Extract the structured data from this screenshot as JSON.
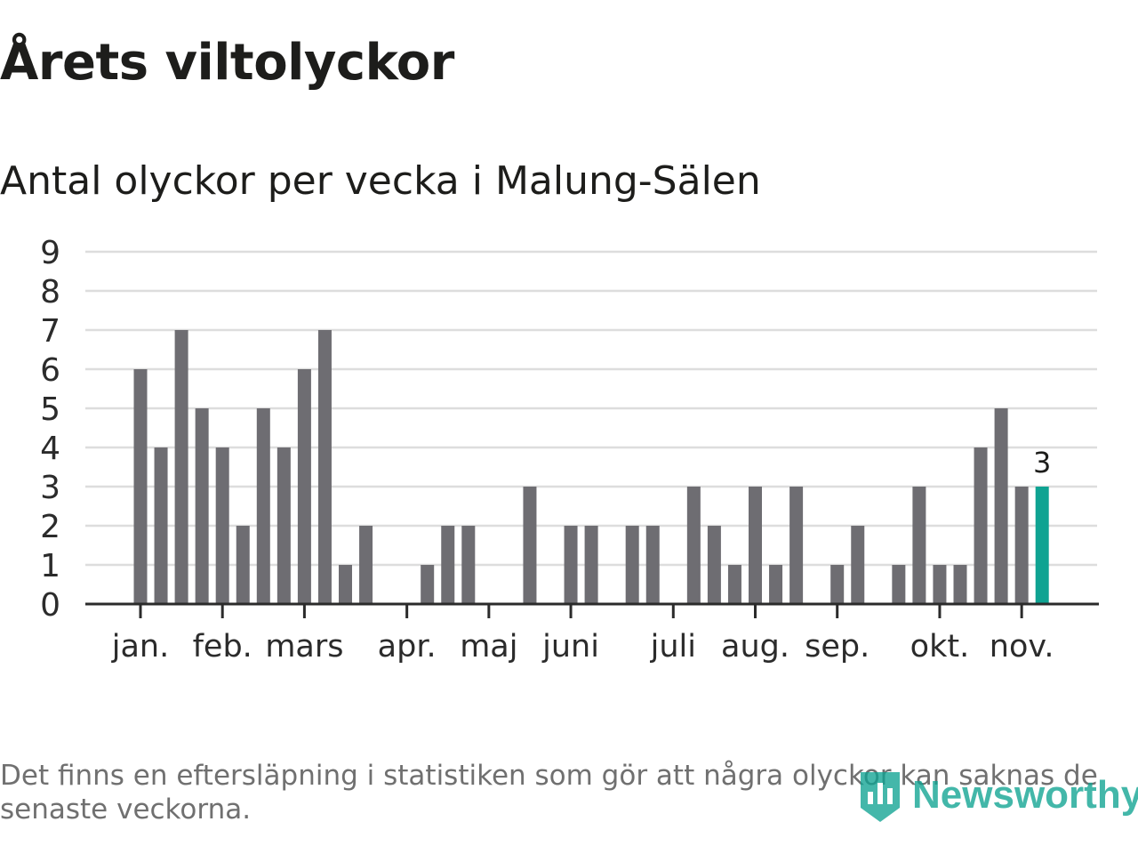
{
  "header": {
    "title": "Årets viltolyckor",
    "subtitle": "Antal olyckor per vecka i Malung-Sälen"
  },
  "footer": {
    "note": "Det finns en eftersläpning i statistiken som gör att några olyckor kan saknas de senaste veckorna.",
    "logo": "Newsworthy"
  },
  "colors": {
    "bar": "#6e6d72",
    "highlight": "#0fa392",
    "grid": "#dddddd",
    "axis": "#2b2b2b",
    "text": "#2b2b2b"
  },
  "chart_data": {
    "type": "bar",
    "title": "Antal olyckor per vecka i Malung-Sälen",
    "xlabel": "",
    "ylabel": "",
    "ylim": [
      0,
      9
    ],
    "yticks": [
      0,
      1,
      2,
      3,
      4,
      5,
      6,
      7,
      8,
      9
    ],
    "grid": true,
    "x": [
      1,
      2,
      3,
      4,
      5,
      6,
      7,
      8,
      9,
      10,
      11,
      12,
      13,
      14,
      15,
      16,
      17,
      18,
      19,
      20,
      21,
      22,
      23,
      24,
      25,
      26,
      27,
      28,
      29,
      30,
      31,
      32,
      33,
      34,
      35,
      36,
      37,
      38,
      39,
      40,
      41,
      42,
      43,
      44,
      45,
      46
    ],
    "values": [
      6,
      4,
      7,
      5,
      4,
      2,
      5,
      4,
      6,
      7,
      1,
      2,
      0,
      0,
      1,
      2,
      2,
      0,
      0,
      3,
      0,
      2,
      2,
      0,
      2,
      2,
      0,
      3,
      2,
      1,
      3,
      1,
      3,
      0,
      1,
      2,
      0,
      1,
      3,
      1,
      1,
      4,
      5,
      3,
      3,
      0
    ],
    "month_ticks": [
      {
        "label": "jan.",
        "week": 1
      },
      {
        "label": "feb.",
        "week": 5
      },
      {
        "label": "mars",
        "week": 9
      },
      {
        "label": "apr.",
        "week": 14
      },
      {
        "label": "maj",
        "week": 18
      },
      {
        "label": "juni",
        "week": 22
      },
      {
        "label": "juli",
        "week": 27
      },
      {
        "label": "aug.",
        "week": 31
      },
      {
        "label": "sep.",
        "week": 35
      },
      {
        "label": "okt.",
        "week": 40
      },
      {
        "label": "nov.",
        "week": 44
      }
    ],
    "highlight": {
      "week": 45,
      "value": 3,
      "label": "3"
    }
  }
}
